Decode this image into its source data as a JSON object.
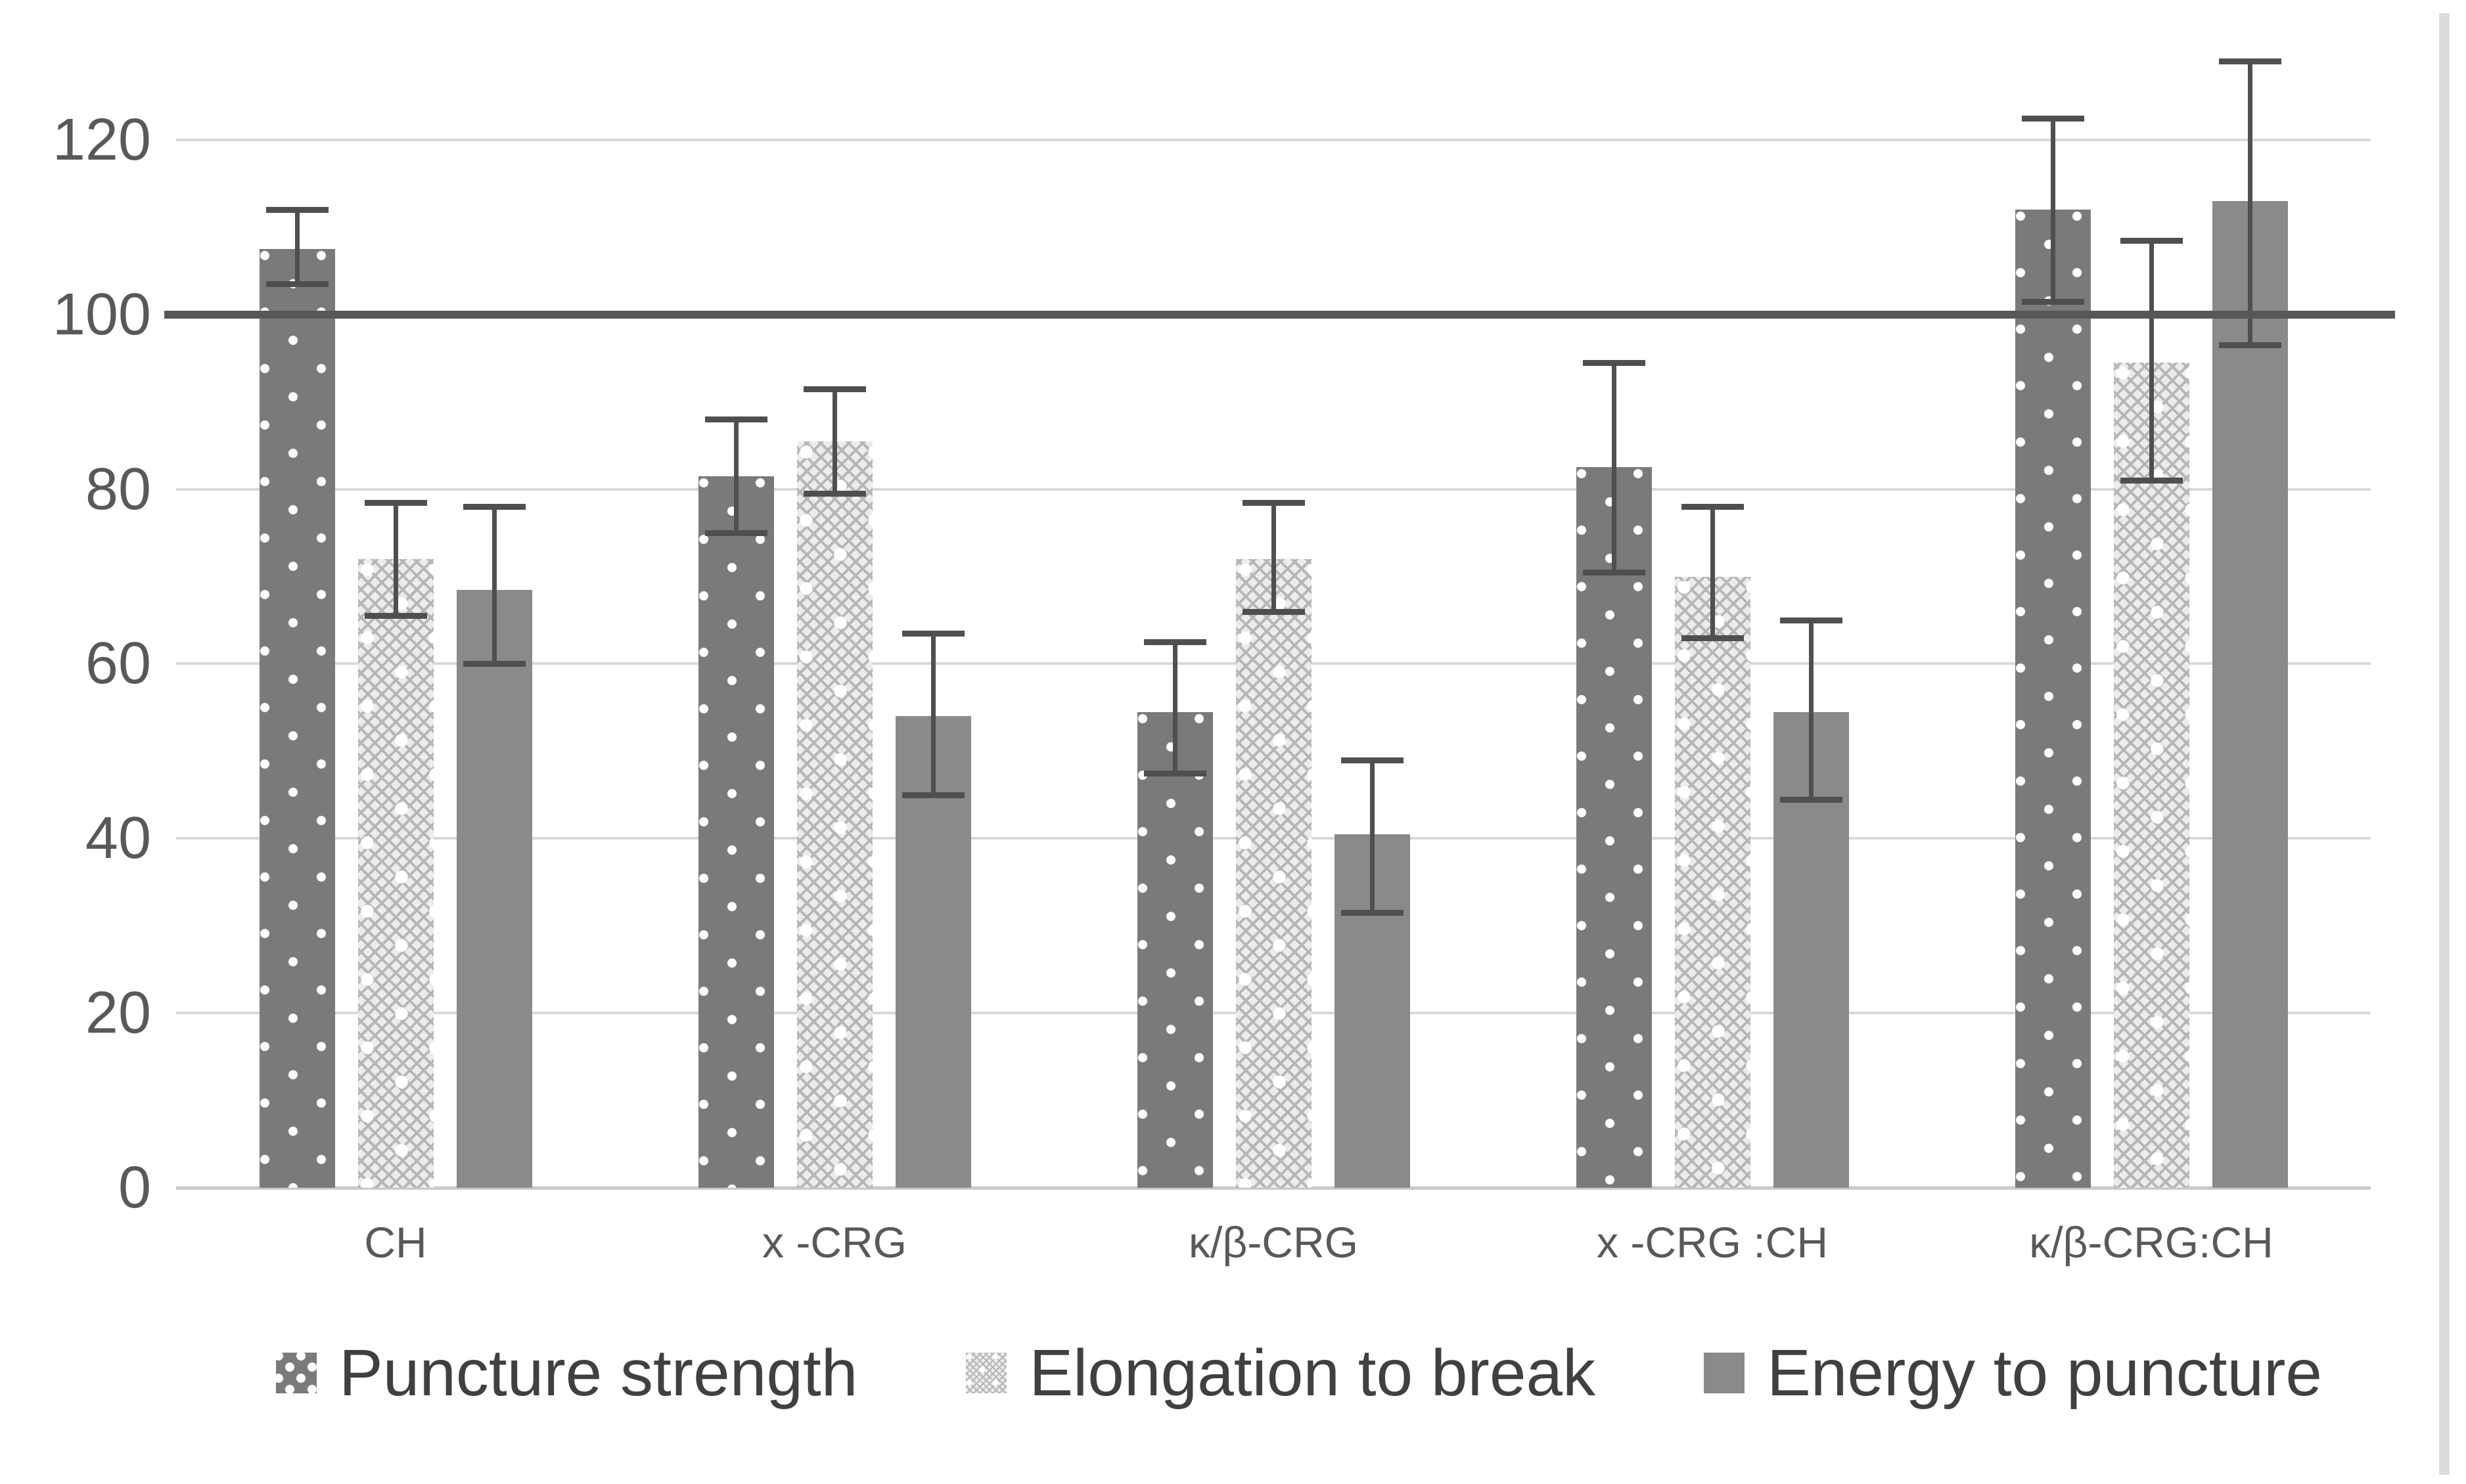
{
  "chart_data": {
    "type": "bar",
    "title": "",
    "xlabel": "",
    "ylabel": "",
    "categories": [
      "CH",
      "x -CRG",
      "κ/β-CRG",
      "x -CRG :CH",
      "κ/β-CRG:CH"
    ],
    "series": [
      {
        "name": "Puncture strength",
        "pattern": "dark-dotted",
        "values": [
          107.5,
          81.5,
          54.5,
          82.5,
          112
        ],
        "error_low": [
          103.5,
          75,
          47.5,
          70.5,
          101.5
        ],
        "error_high": [
          112,
          88,
          62.5,
          94.5,
          122.5
        ]
      },
      {
        "name": "Elongation to break",
        "pattern": "light-crosshatch",
        "values": [
          72,
          85.5,
          72,
          70,
          94.5
        ],
        "error_low": [
          65.5,
          79.5,
          66,
          63,
          81
        ],
        "error_high": [
          78.5,
          91.5,
          78.5,
          78,
          108.5
        ]
      },
      {
        "name": "Energy to puncture",
        "pattern": "solid-gray",
        "values": [
          68.5,
          54,
          40.5,
          54.5,
          113
        ],
        "error_low": [
          60,
          45,
          31.5,
          44.5,
          96.5
        ],
        "error_high": [
          78,
          63.5,
          49,
          65,
          129
        ]
      }
    ],
    "y_axis": {
      "min": 0,
      "max": 120,
      "tick_interval": 20,
      "tick_labels": [
        "0",
        "20",
        "40",
        "60",
        "80",
        "100",
        "120"
      ]
    },
    "reference_line": {
      "value": 100
    },
    "grid": true,
    "legend_position": "bottom"
  },
  "colors": {
    "bar_dark": "#7a7a7a",
    "bar_light": "#cccccc",
    "bar_solid": "#8a8a8a",
    "gridline": "#d9d9d9",
    "reference_line": "#575757",
    "error_bar": "#4f4f4f",
    "axis_text": "#595959",
    "legend_text": "#404040",
    "background": "#ffffff"
  }
}
